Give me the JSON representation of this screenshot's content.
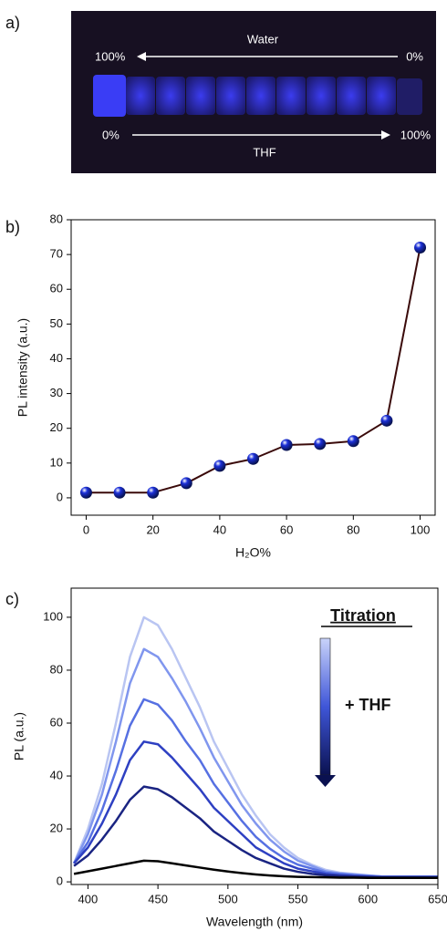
{
  "photo": {
    "label": "a)",
    "top_label": "Water",
    "top_left": "100%",
    "top_right": "0%",
    "bottom_left": "0%",
    "bottom_right": "100%",
    "bottom_label": "THF"
  },
  "chart_data": [
    {
      "type": "line",
      "label": "b)",
      "xlabel": "H₂O%",
      "ylabel": "PL intensity (a.u.)",
      "x": [
        0,
        10,
        20,
        30,
        40,
        50,
        60,
        70,
        80,
        90,
        100
      ],
      "series": [
        {
          "color": "#3a0a0a",
          "marker_color": "#1c30d8",
          "values": [
            1.5,
            1.5,
            1.5,
            4.2,
            9.2,
            11.2,
            15.2,
            15.5,
            16.3,
            22.2,
            72
          ]
        }
      ],
      "markers": true,
      "xlim": [
        -4.5,
        104.5
      ],
      "xticks": [
        0,
        20,
        40,
        60,
        80,
        100
      ],
      "ylim": [
        -5,
        80
      ],
      "yticks": [
        0,
        10,
        20,
        30,
        40,
        50,
        60,
        70,
        80
      ]
    },
    {
      "type": "line",
      "label": "c)",
      "xlabel": "Wavelength (nm)",
      "ylabel": "PL (a.u.)",
      "annotations": [
        "Titration",
        "+ THF"
      ],
      "x": [
        390,
        400,
        410,
        420,
        430,
        440,
        450,
        460,
        470,
        480,
        490,
        500,
        510,
        520,
        530,
        540,
        550,
        560,
        570,
        580,
        590,
        600,
        610,
        620,
        630,
        640,
        650
      ],
      "series": [
        {
          "color": "#b9c5f2",
          "values": [
            7,
            20,
            37,
            60,
            85,
            100,
            97,
            88,
            77,
            66,
            53,
            43,
            33,
            25,
            18,
            13,
            9,
            6.5,
            4.5,
            3.5,
            3,
            2.5,
            2,
            2,
            2,
            2,
            2
          ]
        },
        {
          "color": "#8096ee",
          "values": [
            7,
            18,
            33,
            53,
            75,
            88,
            85,
            77,
            68,
            58,
            47,
            38,
            29,
            22,
            16,
            11.5,
            8,
            6,
            4,
            3.2,
            2.8,
            2.4,
            2,
            2,
            2,
            2,
            2
          ]
        },
        {
          "color": "#5670e2",
          "values": [
            7,
            15,
            27,
            42,
            59,
            69,
            67,
            61,
            53,
            46,
            37,
            30,
            23,
            17,
            12.5,
            9,
            6.5,
            5,
            3.5,
            3,
            2.5,
            2.2,
            2,
            2,
            2,
            2,
            2
          ]
        },
        {
          "color": "#2e40c2",
          "values": [
            7,
            13,
            22,
            33,
            46,
            53,
            52,
            47,
            41,
            35,
            28,
            23,
            18,
            13,
            10,
            7,
            5,
            4,
            3,
            2.5,
            2.2,
            2,
            1.8,
            1.8,
            1.8,
            1.8,
            1.8
          ]
        },
        {
          "color": "#1a2482",
          "values": [
            6,
            10,
            16,
            23,
            31,
            36,
            35,
            32,
            28,
            24,
            19,
            15.5,
            12,
            9,
            7,
            5,
            3.8,
            3,
            2.5,
            2.2,
            2,
            1.8,
            1.7,
            1.7,
            1.7,
            1.7,
            1.7
          ]
        },
        {
          "color": "#000000",
          "values": [
            3,
            4,
            5,
            6,
            7,
            8,
            7.8,
            7,
            6.2,
            5.4,
            4.6,
            3.9,
            3.3,
            2.8,
            2.4,
            2.1,
            1.9,
            1.8,
            1.7,
            1.6,
            1.6,
            1.5,
            1.5,
            1.5,
            1.5,
            1.5,
            1.5
          ]
        }
      ],
      "markers": false,
      "xlim": [
        388,
        650
      ],
      "xticks": [
        400,
        450,
        500,
        550,
        600,
        650
      ],
      "ylim": [
        -1,
        111
      ],
      "yticks": [
        0,
        20,
        40,
        60,
        80,
        100
      ]
    }
  ]
}
